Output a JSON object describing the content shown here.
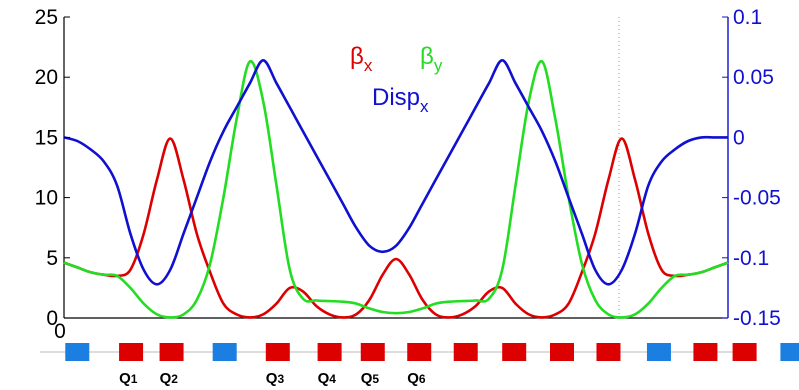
{
  "chart_data": {
    "type": "line",
    "x": [
      0,
      0.02,
      0.04,
      0.06,
      0.08,
      0.1,
      0.12,
      0.14,
      0.16,
      0.18,
      0.2,
      0.22,
      0.24,
      0.26,
      0.28,
      0.3,
      0.32,
      0.34,
      0.36,
      0.38,
      0.4,
      0.42,
      0.44,
      0.46,
      0.48,
      0.5,
      0.52,
      0.54,
      0.56,
      0.58,
      0.6,
      0.62,
      0.64,
      0.66,
      0.68,
      0.7,
      0.72,
      0.74,
      0.76,
      0.78,
      0.8,
      0.82,
      0.84,
      0.86,
      0.88,
      0.9,
      0.92,
      0.94,
      0.96,
      0.98,
      1.0
    ],
    "series": [
      {
        "name": "βx",
        "axis": "left",
        "color": "#dd0000",
        "values": [
          4.6,
          4.2,
          3.8,
          3.6,
          3.5,
          4.0,
          7.0,
          11.5,
          14.9,
          11.5,
          7.0,
          3.8,
          1.2,
          0.3,
          0.05,
          0.3,
          1.2,
          2.5,
          2.2,
          1.0,
          0.3,
          0.05,
          0.3,
          1.5,
          3.6,
          4.9,
          3.6,
          1.5,
          0.3,
          0.05,
          0.3,
          1.0,
          2.2,
          2.5,
          1.2,
          0.3,
          0.05,
          0.3,
          1.2,
          3.8,
          7.0,
          11.5,
          14.9,
          11.5,
          7.0,
          4.0,
          3.5,
          3.6,
          3.8,
          4.2,
          4.6
        ]
      },
      {
        "name": "βy",
        "axis": "left",
        "color": "#22dd22",
        "values": [
          4.6,
          4.2,
          3.8,
          3.6,
          3.5,
          2.5,
          1.2,
          0.3,
          0.05,
          0.3,
          1.5,
          4.5,
          10.0,
          16.5,
          21.3,
          18.0,
          11.0,
          4.0,
          1.6,
          1.45,
          1.4,
          1.35,
          1.2,
          0.8,
          0.5,
          0.4,
          0.5,
          0.8,
          1.2,
          1.35,
          1.4,
          1.45,
          1.6,
          4.0,
          11.0,
          18.0,
          21.3,
          16.5,
          10.0,
          4.5,
          1.5,
          0.3,
          0.05,
          0.3,
          1.2,
          2.5,
          3.5,
          3.6,
          3.8,
          4.2,
          4.6
        ]
      },
      {
        "name": "Dispx",
        "axis": "right",
        "color": "#1010d0",
        "values": [
          0,
          -0.003,
          -0.01,
          -0.02,
          -0.04,
          -0.08,
          -0.11,
          -0.122,
          -0.11,
          -0.08,
          -0.05,
          -0.02,
          0.005,
          0.025,
          0.045,
          0.064,
          0.045,
          0.025,
          0.005,
          -0.015,
          -0.035,
          -0.055,
          -0.075,
          -0.09,
          -0.095,
          -0.09,
          -0.075,
          -0.055,
          -0.035,
          -0.015,
          0.005,
          0.025,
          0.045,
          0.064,
          0.045,
          0.025,
          0.005,
          -0.02,
          -0.05,
          -0.08,
          -0.11,
          -0.122,
          -0.11,
          -0.08,
          -0.04,
          -0.02,
          -0.01,
          -0.003,
          0,
          0,
          0
        ]
      }
    ],
    "ylim_left": [
      0,
      25
    ],
    "yticks_left": [
      "0",
      "5",
      "10",
      "15",
      "20",
      "25"
    ],
    "ylim_right": [
      -0.15,
      0.1
    ],
    "yticks_right": [
      "-0.15",
      "-0.1",
      "-0.05",
      "0",
      "0.05",
      "0.1"
    ],
    "xtick_label": "0",
    "grid": "vertical dotted line near right",
    "legend": {
      "beta_x": {
        "base": "β",
        "sub": "x",
        "color": "#dd0000"
      },
      "beta_y": {
        "base": "β",
        "sub": "y",
        "color": "#22dd22"
      },
      "disp_x": {
        "base": "Disp",
        "sub": "x",
        "color": "#1010d0"
      }
    }
  },
  "lattice": {
    "elements": [
      {
        "color": "#1a7fe0",
        "pos": 0.02
      },
      {
        "color": "#dd0000",
        "pos": 0.101
      },
      {
        "color": "#dd0000",
        "pos": 0.162
      },
      {
        "color": "#1a7fe0",
        "pos": 0.242
      },
      {
        "color": "#dd0000",
        "pos": 0.322
      },
      {
        "color": "#dd0000",
        "pos": 0.4
      },
      {
        "color": "#dd0000",
        "pos": 0.465
      },
      {
        "color": "#dd0000",
        "pos": 0.535
      },
      {
        "color": "#dd0000",
        "pos": 0.605
      },
      {
        "color": "#dd0000",
        "pos": 0.678
      },
      {
        "color": "#dd0000",
        "pos": 0.75
      },
      {
        "color": "#dd0000",
        "pos": 0.82
      },
      {
        "color": "#1a7fe0",
        "pos": 0.896
      },
      {
        "color": "#dd0000",
        "pos": 0.966
      },
      {
        "color": "#dd0000",
        "pos": 1.025
      },
      {
        "color": "#1a7fe0",
        "pos": 1.097
      }
    ],
    "labels": [
      {
        "base": "Q",
        "sub": "1",
        "pos": 0.101
      },
      {
        "base": "Q",
        "sub": "2",
        "pos": 0.162
      },
      {
        "base": "Q",
        "sub": "3",
        "pos": 0.322
      },
      {
        "base": "Q",
        "sub": "4",
        "pos": 0.4
      },
      {
        "base": "Q",
        "sub": "5",
        "pos": 0.465
      },
      {
        "base": "Q",
        "sub": "6",
        "pos": 0.535
      }
    ]
  }
}
